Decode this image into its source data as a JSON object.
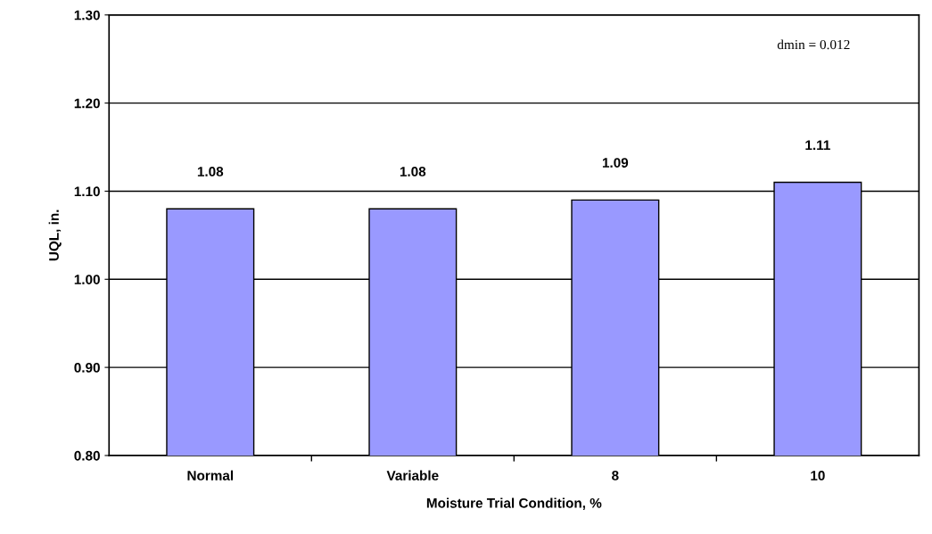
{
  "chart_data": {
    "type": "bar",
    "xlabel": "Moisture Trial Condition, %",
    "ylabel": "UQL, in.",
    "categories": [
      "Normal",
      "Variable",
      "8",
      "10"
    ],
    "values": [
      1.08,
      1.08,
      1.09,
      1.11
    ],
    "color": "#9999ff",
    "ylim": [
      0.8,
      1.3
    ],
    "yticks": [
      {
        "value": 0.8,
        "label": "0.80"
      },
      {
        "value": 0.9,
        "label": "0.90"
      },
      {
        "value": 1.0,
        "label": "1.00"
      },
      {
        "value": 1.1,
        "label": "1.10"
      },
      {
        "value": 1.2,
        "label": "1.20"
      },
      {
        "value": 1.3,
        "label": "1.30"
      }
    ],
    "grid": "y",
    "data_labels": true,
    "annotations": [
      "dmin = 0.012"
    ]
  }
}
